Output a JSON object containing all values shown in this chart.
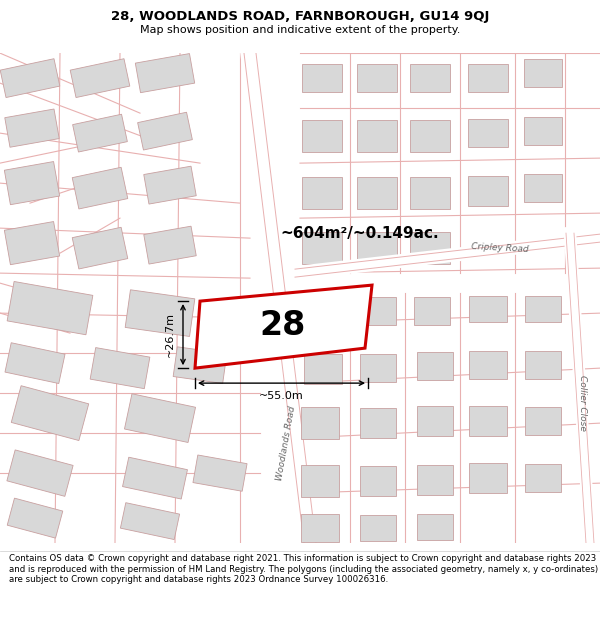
{
  "title_line1": "28, WOODLANDS ROAD, FARNBOROUGH, GU14 9QJ",
  "title_line2": "Map shows position and indicative extent of the property.",
  "footer_text": "Contains OS data © Crown copyright and database right 2021. This information is subject to Crown copyright and database rights 2023 and is reproduced with the permission of HM Land Registry. The polygons (including the associated geometry, namely x, y co-ordinates) are subject to Crown copyright and database rights 2023 Ordnance Survey 100026316.",
  "area_text": "~604m²/~0.149ac.",
  "label_text": "28",
  "dim_width": "~55.0m",
  "dim_height": "~26.7m",
  "street_label_woodlands": "Woodlands Road",
  "street_label_cripley": "Cripley Road",
  "street_label_collier": "Collier Close",
  "map_bg": "#ffffff",
  "building_fill": "#d8d8d8",
  "building_edge": "#c8a0a0",
  "road_line_color": "#e8b0b0",
  "property_fill": "#ffffff",
  "property_edge_color": "#cc0000",
  "title_fontsize": 9.5,
  "subtitle_fontsize": 8.0,
  "footer_fontsize": 6.2,
  "label_fontsize": 24,
  "area_fontsize": 11,
  "dim_fontsize": 8,
  "street_fontsize": 6.5
}
